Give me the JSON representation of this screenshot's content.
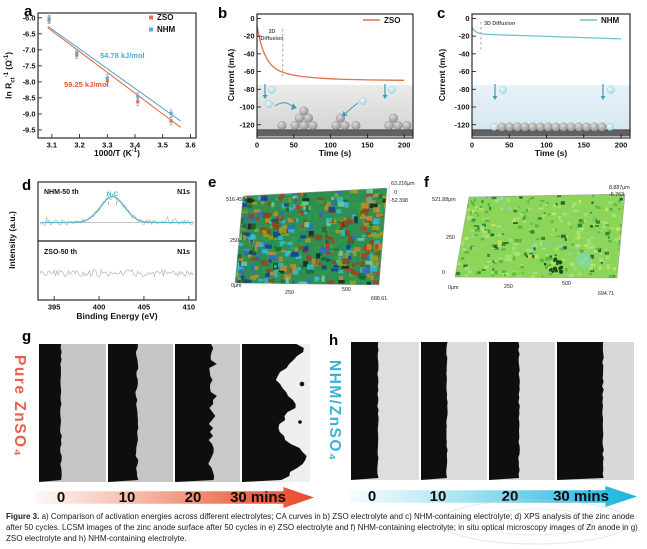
{
  "caption": {
    "lead": "Figure 3.",
    "text": " a) Comparison of activation energies across different electrolytes; CA curves in b) ZSO electrolyte and c) NHM-containing electrolyte; d) XPS analysis of the zinc anode after 50 cycles. LCSM images of the zinc anode surface after 50 cycles in e) ZSO electrolyte and f) NHM-containing electrolyte; in situ optical microscopy images of Zn anode in g) ZSO electrolyte and h) NHM-containing electrolyte."
  },
  "panels": {
    "a": {
      "letter": "a",
      "chart_data": {
        "type": "scatter",
        "xlabel_parts": {
          "p1": "1000/T (K",
          "sup": "-1",
          "p2": ")"
        },
        "ylabel_parts": {
          "p1": "ln R",
          "sub": "ct",
          "sup1": "-1",
          "p2": " (Ω",
          "sup2": "-1",
          "p3": ")"
        },
        "xlim": [
          3.05,
          3.62
        ],
        "ylim": [
          -9.75,
          -5.85
        ],
        "xticks": [
          "3.1",
          "3.2",
          "3.3",
          "3.4",
          "3.5",
          "3.6"
        ],
        "yticks": [
          "-6.0",
          "-6.5",
          "-7.0",
          "-7.5",
          "-8.0",
          "-8.5",
          "-9.0",
          "-9.5"
        ],
        "x": [
          3.09,
          3.19,
          3.3,
          3.41,
          3.53
        ],
        "series": [
          {
            "name": "ZSO",
            "color": "#e0714a",
            "values": [
              -6.07,
              -7.16,
              -7.97,
              -8.62,
              -9.22
            ],
            "fit": [
              [
                3.085,
                -6.31
              ],
              [
                3.565,
                -9.42
              ]
            ],
            "annotation": "59.25 kJ/mol",
            "ann_color": "#e8553c"
          },
          {
            "name": "NHM",
            "color": "#5fa8d4",
            "values": [
              -6.03,
              -7.1,
              -7.88,
              -8.45,
              -8.98
            ],
            "fit": [
              [
                3.085,
                -6.26
              ],
              [
                3.565,
                -9.22
              ]
            ],
            "annotation": "54.78 kJ/mol",
            "ann_color": "#4aa8da"
          }
        ]
      }
    },
    "b": {
      "letter": "b",
      "chart_data": {
        "type": "line",
        "legend": "ZSO",
        "color": "#e0714a",
        "xlabel": "Time (s)",
        "ylabel": "Current (mA)",
        "xlim": [
          0,
          212
        ],
        "ylim": [
          -135,
          5
        ],
        "xticks": [
          "0",
          "50",
          "100",
          "150",
          "200"
        ],
        "yticks": [
          "0",
          "-20",
          "-40",
          "-60",
          "-80",
          "-100",
          "-120"
        ],
        "points": [
          [
            0,
            -8
          ],
          [
            2,
            -16.9
          ],
          [
            4,
            -24.2
          ],
          [
            6,
            -30.4
          ],
          [
            8,
            -35.6
          ],
          [
            10,
            -39.8
          ],
          [
            13,
            -45
          ],
          [
            16,
            -49
          ],
          [
            20,
            -53
          ],
          [
            25,
            -56.5
          ],
          [
            30,
            -59.1
          ],
          [
            35,
            -60.8
          ],
          [
            40,
            -62.2
          ],
          [
            50,
            -64.1
          ],
          [
            60,
            -65.4
          ],
          [
            80,
            -67.1
          ],
          [
            100,
            -68.2
          ],
          [
            120,
            -68.8
          ],
          [
            150,
            -69.4
          ],
          [
            200,
            -69.8
          ]
        ],
        "annotation_lines": [
          "2D",
          "Diffusion"
        ],
        "dash_x": 35
      }
    },
    "c": {
      "letter": "c",
      "chart_data": {
        "type": "line",
        "legend": "NHM",
        "color": "#6fc4ce",
        "xlabel": "Time (s)",
        "ylabel": "Current (mA)",
        "xlim": [
          0,
          212
        ],
        "ylim": [
          -135,
          5
        ],
        "xticks": [
          "0",
          "50",
          "100",
          "150",
          "200"
        ],
        "yticks": [
          "0",
          "-20",
          "-40",
          "-60",
          "-80",
          "-100",
          "-120"
        ],
        "points": [
          [
            0,
            -10
          ],
          [
            2,
            -12.6
          ],
          [
            4,
            -14.2
          ],
          [
            6,
            -15.4
          ],
          [
            8,
            -16.2
          ],
          [
            10,
            -16.8
          ],
          [
            15,
            -17.6
          ],
          [
            20,
            -17.9
          ],
          [
            30,
            -18.3
          ],
          [
            50,
            -18.9
          ],
          [
            80,
            -19.7
          ],
          [
            100,
            -20.3
          ],
          [
            130,
            -21.1
          ],
          [
            160,
            -22
          ],
          [
            200,
            -23.1
          ]
        ],
        "annotation_lines": [
          "3D Diffusion"
        ],
        "dash_x": 12
      }
    },
    "d": {
      "letter": "d",
      "chart_data": {
        "type": "xps",
        "xlabel": "Binding Energy (eV)",
        "ylabel": "Intensity (a.u.)",
        "xticks": [
          "395",
          "400",
          "405",
          "410"
        ],
        "top": {
          "sample": "NHM-50 th",
          "region": "N1s",
          "peak_label": "N-C",
          "peak_center_eV": 401.5
        },
        "bottom": {
          "sample": "ZSO-50 th",
          "region": "N1s"
        }
      }
    },
    "e": {
      "letter": "e",
      "labels": {
        "y_max": "516.458μm",
        "y_mid": "250",
        "origin": "0μm",
        "x_mid": "250",
        "x_hi": "500",
        "x_max": "688.61",
        "z_max": "63.216μm",
        "z_zero": "0",
        "z_min": "-52.398"
      }
    },
    "f": {
      "letter": "f",
      "labels": {
        "y_max": "521.88μm",
        "y_mid": "250",
        "y_zero": "0",
        "origin": "0μm",
        "x_mid": "250",
        "x_hi": "500",
        "x_max": "694.71",
        "z_max": "8.887μm",
        "z_min": "-6.763"
      }
    },
    "g": {
      "letter": "g",
      "side_label": "Pure ZnSO₄",
      "times": [
        "0",
        "10",
        "20",
        "30 mins"
      ],
      "accent": "#e84b30",
      "label_color": "#e8604c"
    },
    "h": {
      "letter": "h",
      "side_label": "NHM/ZnSO₄",
      "times": [
        "0",
        "10",
        "20",
        "30 mins"
      ],
      "accent": "#1db4de",
      "label_color": "#3fb0d7"
    }
  }
}
